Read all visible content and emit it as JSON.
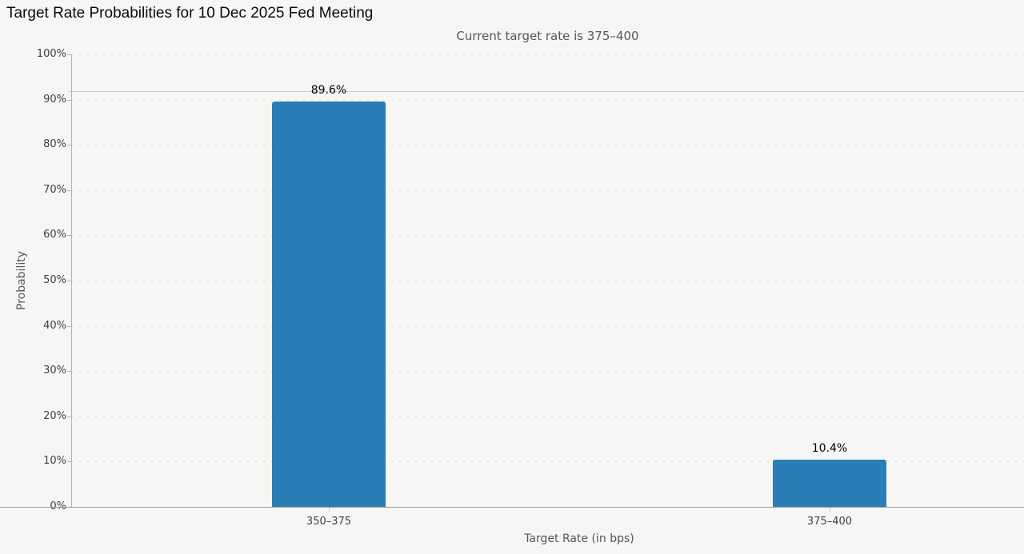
{
  "chart_data": {
    "type": "bar",
    "title": "Target Rate Probabilities for 10 Dec 2025 Fed Meeting",
    "subtitle": "Current target rate is 375–400",
    "categories": [
      "350–375",
      "375–400"
    ],
    "values": [
      89.6,
      10.4
    ],
    "data_labels": [
      "89.6%",
      "10.4%"
    ],
    "xlabel": "Target Rate (in bps)",
    "ylabel": "Probability",
    "ylim": [
      0,
      100
    ],
    "ytick_step": 10,
    "ytick_labels": [
      "0%",
      "10%",
      "20%",
      "30%",
      "40%",
      "50%",
      "60%",
      "70%",
      "80%",
      "90%",
      "100%"
    ],
    "grid": "dotted-horizontal",
    "plotline_y": 91.8,
    "legend": "none",
    "colors": {
      "bar": "#2b7db6",
      "background": "#f6f6f4",
      "grid_dot": "#d2d2cd",
      "plotline": "#cbcbcb",
      "text_primary": "#0b0b0b",
      "text_secondary": "#53575c"
    }
  }
}
